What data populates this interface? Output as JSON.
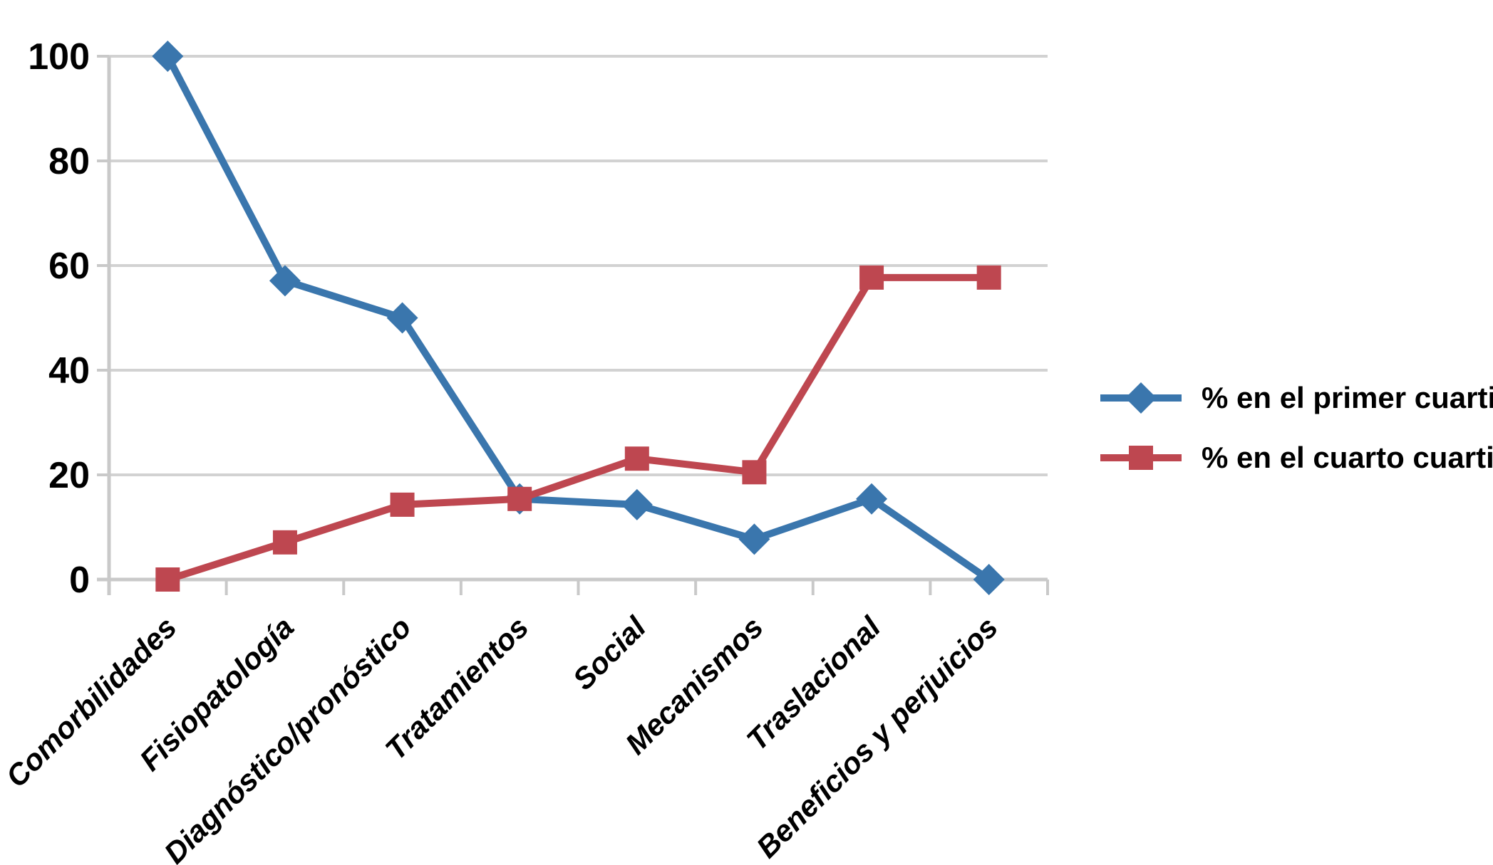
{
  "chart_data": {
    "type": "line",
    "categories": [
      "Comorbilidades",
      "Fisiopatología",
      "Diagnóstico/pronóstico",
      "Tratamientos",
      "Social",
      "Mecanismos",
      "Traslacional",
      "Beneficios y perjuicios"
    ],
    "series": [
      {
        "name": "% en el primer cuartil",
        "marker": "diamond",
        "color": "#3a76ad",
        "values": [
          100,
          57.1,
          50,
          15.4,
          14.3,
          7.7,
          15.4,
          0
        ]
      },
      {
        "name": "% en el cuarto cuartil",
        "marker": "square",
        "color": "#be4750",
        "values": [
          0,
          7.1,
          14.3,
          15.4,
          23.1,
          20.5,
          57.7,
          57.7
        ]
      }
    ],
    "title": "",
    "xlabel": "",
    "ylabel": "",
    "ylim": [
      0,
      100
    ],
    "ytick_step": 20,
    "yticks": [
      "0",
      "20",
      "40",
      "60",
      "80",
      "100"
    ],
    "grid": true,
    "legend_position": "right",
    "colors": {
      "gridline": "#d2d2d2",
      "axis": "#c9c9c9",
      "tick_label": "#000000",
      "background": "#ffffff"
    }
  }
}
